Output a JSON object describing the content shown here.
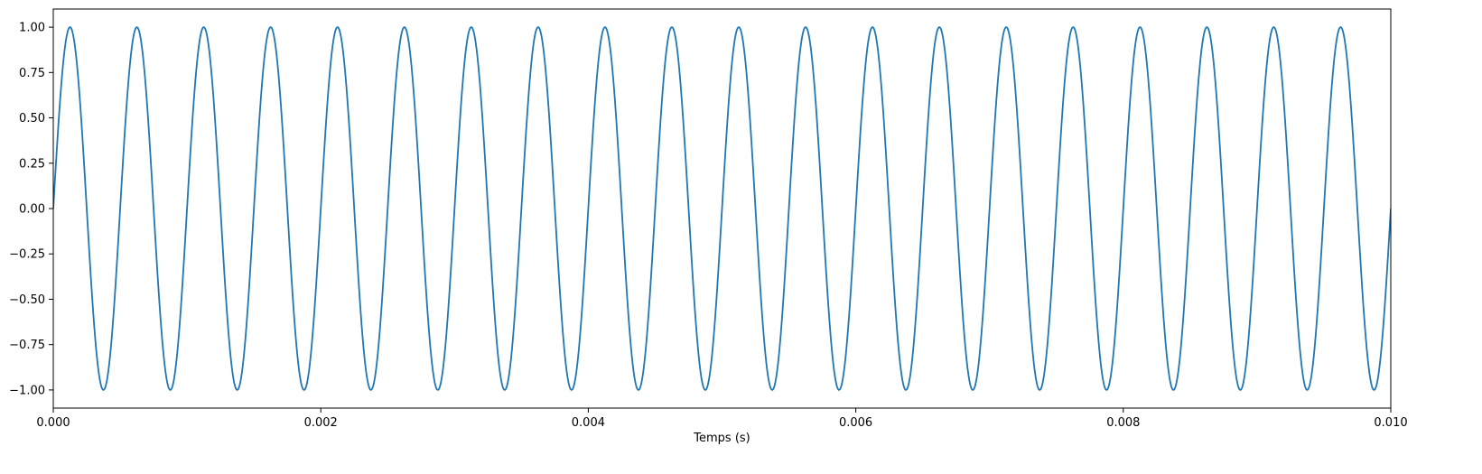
{
  "chart_data": {
    "type": "line",
    "title": "",
    "xlabel": "Temps (s)",
    "ylabel": "",
    "xlim": [
      0.0,
      0.01
    ],
    "ylim": [
      -1.1,
      1.1
    ],
    "grid": false,
    "x_ticks": [
      "0.000",
      "0.002",
      "0.004",
      "0.006",
      "0.008",
      "0.010"
    ],
    "x_tick_values": [
      0.0,
      0.002,
      0.004,
      0.006,
      0.008,
      0.01
    ],
    "y_ticks": [
      "−1.00",
      "−0.75",
      "−0.50",
      "−0.25",
      "0.00",
      "0.25",
      "0.50",
      "0.75",
      "1.00"
    ],
    "y_tick_values": [
      -1.0,
      -0.75,
      -0.5,
      -0.25,
      0.0,
      0.25,
      0.5,
      0.75,
      1.0
    ],
    "series": [
      {
        "function": "sin(2*pi*f*t)",
        "frequency_hz": 2000,
        "amplitude": 1.0,
        "t_start": 0.0,
        "t_end": 0.01,
        "color": "#1f77b4"
      }
    ]
  }
}
